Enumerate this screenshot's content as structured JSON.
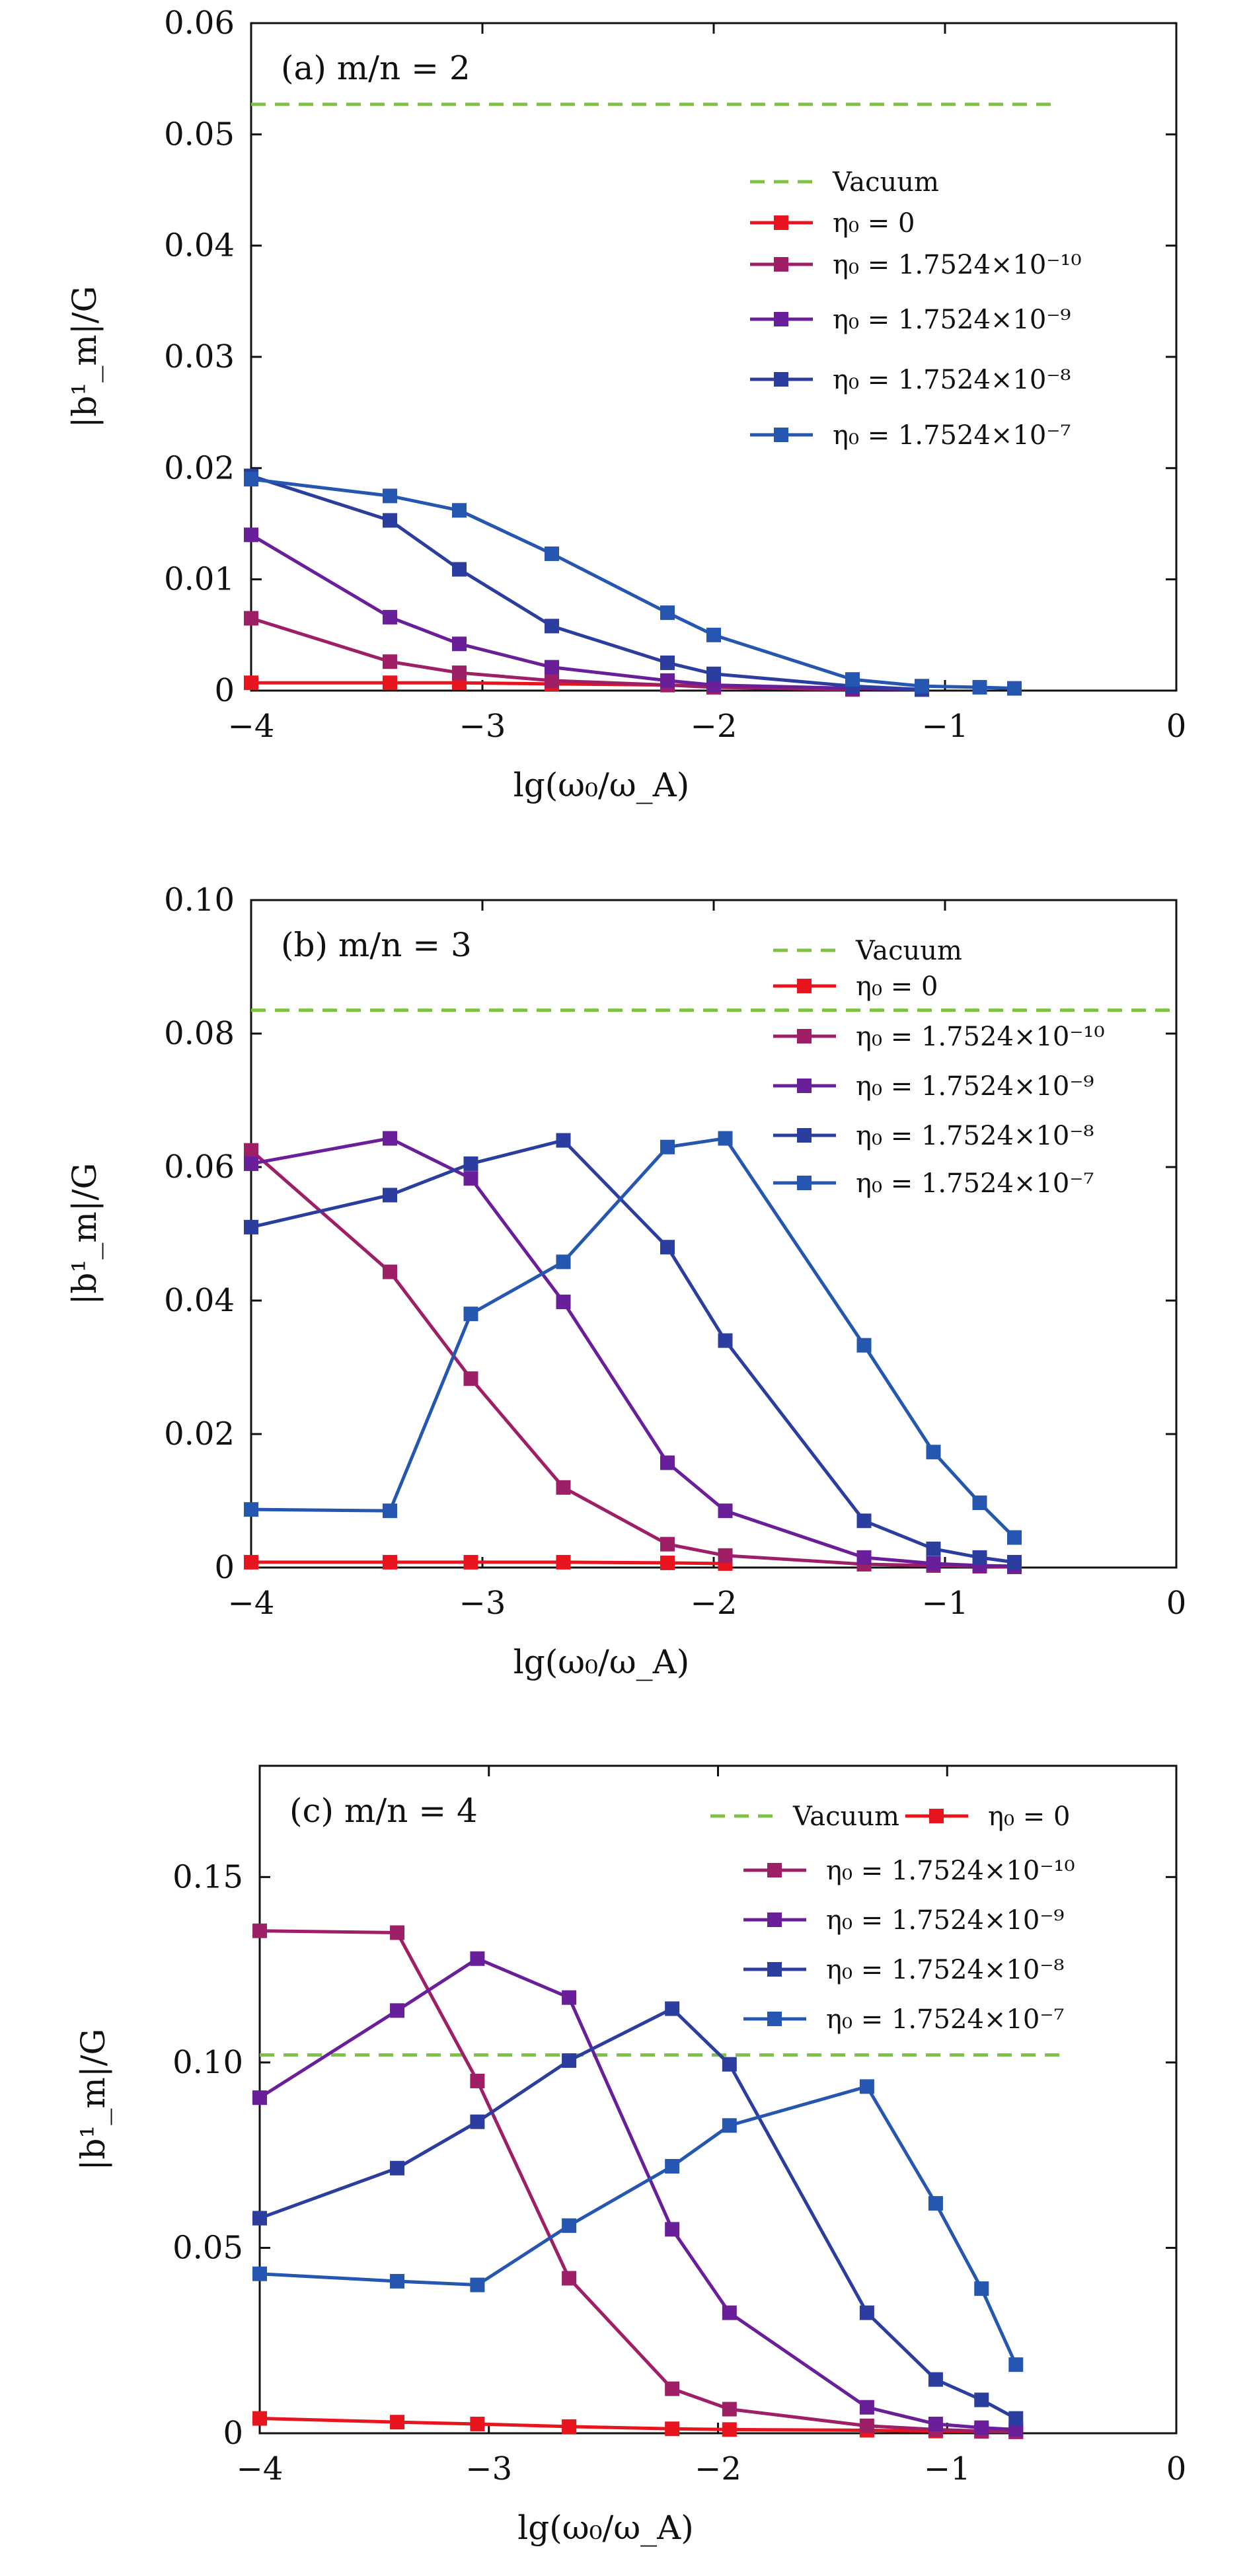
{
  "chart_data": [
    {
      "type": "line",
      "panel_label": "(a) m/n = 2",
      "xlabel": "lg(ω₀/ω_A)",
      "ylabel": "|b¹_m|/G",
      "xlim": [
        -4,
        0
      ],
      "ylim": [
        0,
        0.06
      ],
      "xticks": [
        "−4",
        "−3",
        "−2",
        "−1",
        "0"
      ],
      "yticks": [
        "0",
        "0.01",
        "0.02",
        "0.03",
        "0.04",
        "0.05",
        "0.06"
      ],
      "legend_position": "right",
      "vacuum": {
        "name": "Vacuum",
        "value": 0.0527,
        "x_range": [
          -4,
          -0.52
        ]
      },
      "series": [
        {
          "name": "η₀ = 0",
          "color": "#e8141e",
          "x": [
            -4,
            -3.4,
            -3.1,
            -2.7,
            -2.2,
            -2.0
          ],
          "y": [
            0.0007,
            0.0007,
            0.0007,
            0.0006,
            0.0005,
            0.0004
          ]
        },
        {
          "name": "η₀ = 1.7524×10⁻¹⁰",
          "color": "#9e1f66",
          "x": [
            -4,
            -3.4,
            -3.1,
            -2.7,
            -2.2,
            -2.0,
            -1.4
          ],
          "y": [
            0.0065,
            0.0026,
            0.0016,
            0.0009,
            0.0005,
            0.0003,
            0.0001
          ]
        },
        {
          "name": "η₀ = 1.7524×10⁻⁹",
          "color": "#6a1f9a",
          "x": [
            -4,
            -3.4,
            -3.1,
            -2.7,
            -2.2,
            -2.0,
            -1.4,
            -1.1
          ],
          "y": [
            0.014,
            0.0066,
            0.0042,
            0.0021,
            0.0009,
            0.0005,
            0.0002,
            0.0001
          ]
        },
        {
          "name": "η₀ = 1.7524×10⁻⁸",
          "color": "#2b3d9e",
          "x": [
            -4,
            -3.4,
            -3.1,
            -2.7,
            -2.2,
            -2.0,
            -1.4,
            -1.1
          ],
          "y": [
            0.0193,
            0.0153,
            0.0109,
            0.0058,
            0.0025,
            0.0015,
            0.0004,
            0.0001
          ]
        },
        {
          "name": "η₀ = 1.7524×10⁻⁷",
          "color": "#2556b0",
          "x": [
            -4,
            -3.4,
            -3.1,
            -2.7,
            -2.2,
            -2.0,
            -1.4,
            -1.1,
            -0.85,
            -0.7
          ],
          "y": [
            0.019,
            0.0175,
            0.0162,
            0.0123,
            0.007,
            0.005,
            0.001,
            0.0004,
            0.0003,
            0.0002
          ]
        }
      ]
    },
    {
      "type": "line",
      "panel_label": "(b) m/n = 3",
      "xlabel": "lg(ω₀/ω_A)",
      "ylabel": "|b¹_m|/G",
      "xlim": [
        -4,
        0
      ],
      "ylim": [
        0,
        0.1
      ],
      "xticks": [
        "−4",
        "−3",
        "−2",
        "−1",
        "0"
      ],
      "yticks": [
        "0",
        "0.02",
        "0.04",
        "0.06",
        "0.08",
        "0.10"
      ],
      "legend_position": "top-right",
      "vacuum": {
        "name": "Vacuum",
        "value": 0.0835,
        "x_range": [
          -4,
          0
        ]
      },
      "series": [
        {
          "name": "η₀ = 0",
          "color": "#e8141e",
          "x": [
            -4,
            -3.4,
            -3.05,
            -2.65,
            -2.2,
            -1.95
          ],
          "y": [
            0.0008,
            0.0008,
            0.0008,
            0.0008,
            0.0007,
            0.0006
          ]
        },
        {
          "name": "η₀ = 1.7524×10⁻¹⁰",
          "color": "#9e1f66",
          "x": [
            -4,
            -3.4,
            -3.05,
            -2.65,
            -2.2,
            -1.95,
            -1.35,
            -1.05,
            -0.85,
            -0.7
          ],
          "y": [
            0.0625,
            0.0443,
            0.0283,
            0.012,
            0.0035,
            0.0018,
            0.0005,
            0.0003,
            0.0002,
            0.0001
          ]
        },
        {
          "name": "η₀ = 1.7524×10⁻⁹",
          "color": "#6a1f9a",
          "x": [
            -4,
            -3.4,
            -3.05,
            -2.65,
            -2.2,
            -1.95,
            -1.35,
            -1.05,
            -0.85,
            -0.7
          ],
          "y": [
            0.0605,
            0.0643,
            0.0583,
            0.0398,
            0.0157,
            0.0085,
            0.0015,
            0.0006,
            0.0003,
            0.0002
          ]
        },
        {
          "name": "η₀ = 1.7524×10⁻⁸",
          "color": "#2b3d9e",
          "x": [
            -4,
            -3.4,
            -3.05,
            -2.65,
            -2.2,
            -1.95,
            -1.35,
            -1.05,
            -0.85,
            -0.7
          ],
          "y": [
            0.051,
            0.0558,
            0.0605,
            0.064,
            0.048,
            0.034,
            0.007,
            0.0028,
            0.0015,
            0.0008
          ]
        },
        {
          "name": "η₀ = 1.7524×10⁻⁷",
          "color": "#2556b0",
          "x": [
            -4,
            -3.4,
            -3.05,
            -2.65,
            -2.2,
            -1.95,
            -1.35,
            -1.05,
            -0.85,
            -0.7
          ],
          "y": [
            0.0087,
            0.0085,
            0.038,
            0.0458,
            0.063,
            0.0643,
            0.0333,
            0.0173,
            0.0097,
            0.0045
          ]
        }
      ]
    },
    {
      "type": "line",
      "panel_label": "(c) m/n = 4",
      "xlabel": "lg(ω₀/ω_A)",
      "ylabel": "|b¹_m|/G",
      "xlim": [
        -4,
        0
      ],
      "ylim": [
        0,
        0.18
      ],
      "xticks": [
        "−4",
        "−3",
        "−2",
        "−1",
        "0"
      ],
      "yticks": [
        "0",
        "0.05",
        "0.10",
        "0.15"
      ],
      "legend_position": "top-right",
      "vacuum": {
        "name": "Vacuum",
        "value": 0.102,
        "x_range": [
          -4,
          -0.5
        ]
      },
      "series": [
        {
          "name": "η₀ = 0",
          "color": "#e8141e",
          "x": [
            -4,
            -3.4,
            -3.05,
            -2.65,
            -2.2,
            -1.95,
            -1.35,
            -1.05,
            -0.85,
            -0.7
          ],
          "y": [
            0.004,
            0.003,
            0.0025,
            0.0018,
            0.0012,
            0.001,
            0.0008,
            0.0006,
            0.0005,
            0.0004
          ]
        },
        {
          "name": "η₀ = 1.7524×10⁻¹⁰",
          "color": "#9e1f66",
          "x": [
            -4,
            -3.4,
            -3.05,
            -2.65,
            -2.2,
            -1.95,
            -1.35,
            -1.05,
            -0.85,
            -0.7
          ],
          "y": [
            0.1355,
            0.135,
            0.095,
            0.0418,
            0.012,
            0.0065,
            0.002,
            0.001,
            0.0006,
            0.0004
          ]
        },
        {
          "name": "η₀ = 1.7524×10⁻⁹",
          "color": "#6a1f9a",
          "x": [
            -4,
            -3.4,
            -3.05,
            -2.65,
            -2.2,
            -1.95,
            -1.35,
            -1.05,
            -0.85,
            -0.7
          ],
          "y": [
            0.0905,
            0.114,
            0.128,
            0.1175,
            0.055,
            0.0325,
            0.007,
            0.0025,
            0.0015,
            0.001
          ]
        },
        {
          "name": "η₀ = 1.7524×10⁻⁸",
          "color": "#2b3d9e",
          "x": [
            -4,
            -3.4,
            -3.05,
            -2.65,
            -2.2,
            -1.95,
            -1.35,
            -1.05,
            -0.85,
            -0.7
          ],
          "y": [
            0.058,
            0.0715,
            0.084,
            0.1005,
            0.1145,
            0.0995,
            0.0325,
            0.0145,
            0.009,
            0.004
          ]
        },
        {
          "name": "η₀ = 1.7524×10⁻⁷",
          "color": "#2556b0",
          "x": [
            -4,
            -3.4,
            -3.05,
            -2.65,
            -2.2,
            -1.95,
            -1.35,
            -1.05,
            -0.85,
            -0.7
          ],
          "y": [
            0.043,
            0.041,
            0.04,
            0.056,
            0.072,
            0.083,
            0.0935,
            0.062,
            0.039,
            0.0185
          ]
        }
      ]
    }
  ]
}
